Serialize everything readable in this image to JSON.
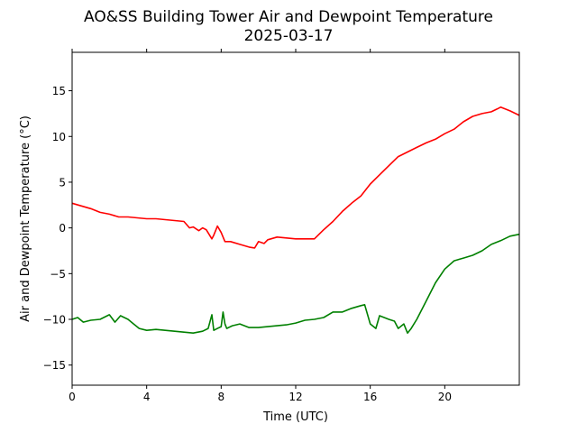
{
  "chart_data": {
    "type": "line",
    "title": "AO&SS Building Tower Air and Dewpoint Temperature",
    "subtitle": "2025-03-17",
    "xlabel": "Time (UTC)",
    "ylabel": "Air and Dewpoint Temperature (°C)",
    "xlim": [
      0,
      24
    ],
    "ylim": [
      -17.2,
      19.2
    ],
    "xticks": [
      0,
      4,
      8,
      12,
      16,
      20
    ],
    "xtick_labels": [
      "0",
      "4",
      "8",
      "12",
      "16",
      "20"
    ],
    "yticks": [
      -15,
      -10,
      -5,
      0,
      5,
      10,
      15
    ],
    "ytick_labels": [
      "−15",
      "−10",
      "−5",
      "0",
      "5",
      "10",
      "15"
    ],
    "grid": false,
    "series": [
      {
        "color": "#ff0000",
        "x": [
          0,
          0.5,
          1.0,
          1.5,
          2.0,
          2.5,
          3.0,
          3.5,
          4.0,
          4.5,
          5.0,
          5.5,
          6.0,
          6.3,
          6.5,
          6.8,
          7.0,
          7.2,
          7.5,
          7.6,
          7.8,
          8.0,
          8.2,
          8.5,
          9.0,
          9.5,
          9.8,
          10.0,
          10.3,
          10.5,
          11.0,
          11.5,
          12.0,
          12.5,
          13.0,
          13.5,
          14.0,
          14.5,
          15.0,
          15.5,
          16.0,
          16.5,
          17.0,
          17.5,
          18.0,
          18.5,
          19.0,
          19.5,
          20.0,
          20.5,
          21.0,
          21.5,
          22.0,
          22.5,
          22.8,
          23.0,
          23.5,
          24.0
        ],
        "y": [
          2.7,
          2.4,
          2.1,
          1.7,
          1.5,
          1.2,
          1.2,
          1.1,
          1.0,
          1.0,
          0.9,
          0.8,
          0.7,
          0.0,
          0.1,
          -0.3,
          0.0,
          -0.2,
          -1.2,
          -0.8,
          0.2,
          -0.5,
          -1.5,
          -1.5,
          -1.8,
          -2.1,
          -2.2,
          -1.5,
          -1.7,
          -1.3,
          -1.0,
          -1.1,
          -1.2,
          -1.2,
          -1.2,
          -0.2,
          0.7,
          1.8,
          2.7,
          3.5,
          4.8,
          5.8,
          6.8,
          7.8,
          8.3,
          8.8,
          9.3,
          9.7,
          10.3,
          10.8,
          11.6,
          12.2,
          12.5,
          12.7,
          13.0,
          13.2,
          12.8,
          12.3
        ]
      },
      {
        "color": "#008000",
        "x": [
          0,
          0.3,
          0.6,
          1.0,
          1.5,
          2.0,
          2.3,
          2.6,
          3.0,
          3.3,
          3.6,
          4.0,
          4.5,
          5.0,
          5.5,
          6.0,
          6.5,
          7.0,
          7.3,
          7.5,
          7.6,
          7.8,
          8.0,
          8.1,
          8.2,
          8.3,
          8.6,
          9.0,
          9.5,
          10.0,
          10.5,
          11.0,
          11.5,
          12.0,
          12.5,
          13.0,
          13.5,
          14.0,
          14.5,
          15.0,
          15.5,
          15.7,
          16.0,
          16.3,
          16.5,
          17.0,
          17.3,
          17.5,
          17.8,
          18.0,
          18.2,
          18.5,
          19.0,
          19.5,
          20.0,
          20.5,
          21.0,
          21.5,
          22.0,
          22.5,
          23.0,
          23.5,
          24.0
        ],
        "y": [
          -10.0,
          -9.8,
          -10.3,
          -10.1,
          -10.0,
          -9.5,
          -10.3,
          -9.6,
          -10.0,
          -10.5,
          -11.0,
          -11.2,
          -11.1,
          -11.2,
          -11.3,
          -11.4,
          -11.5,
          -11.3,
          -11.0,
          -9.5,
          -11.2,
          -11.0,
          -10.8,
          -9.2,
          -10.5,
          -11.0,
          -10.7,
          -10.5,
          -10.9,
          -10.9,
          -10.8,
          -10.7,
          -10.6,
          -10.4,
          -10.1,
          -10.0,
          -9.8,
          -9.2,
          -9.2,
          -8.8,
          -8.5,
          -8.4,
          -10.5,
          -11.0,
          -9.6,
          -10.0,
          -10.2,
          -11.0,
          -10.5,
          -11.5,
          -11.0,
          -10.0,
          -8.0,
          -6.0,
          -4.5,
          -3.6,
          -3.3,
          -3.0,
          -2.5,
          -1.8,
          -1.4,
          -0.9,
          -0.7
        ]
      }
    ]
  }
}
